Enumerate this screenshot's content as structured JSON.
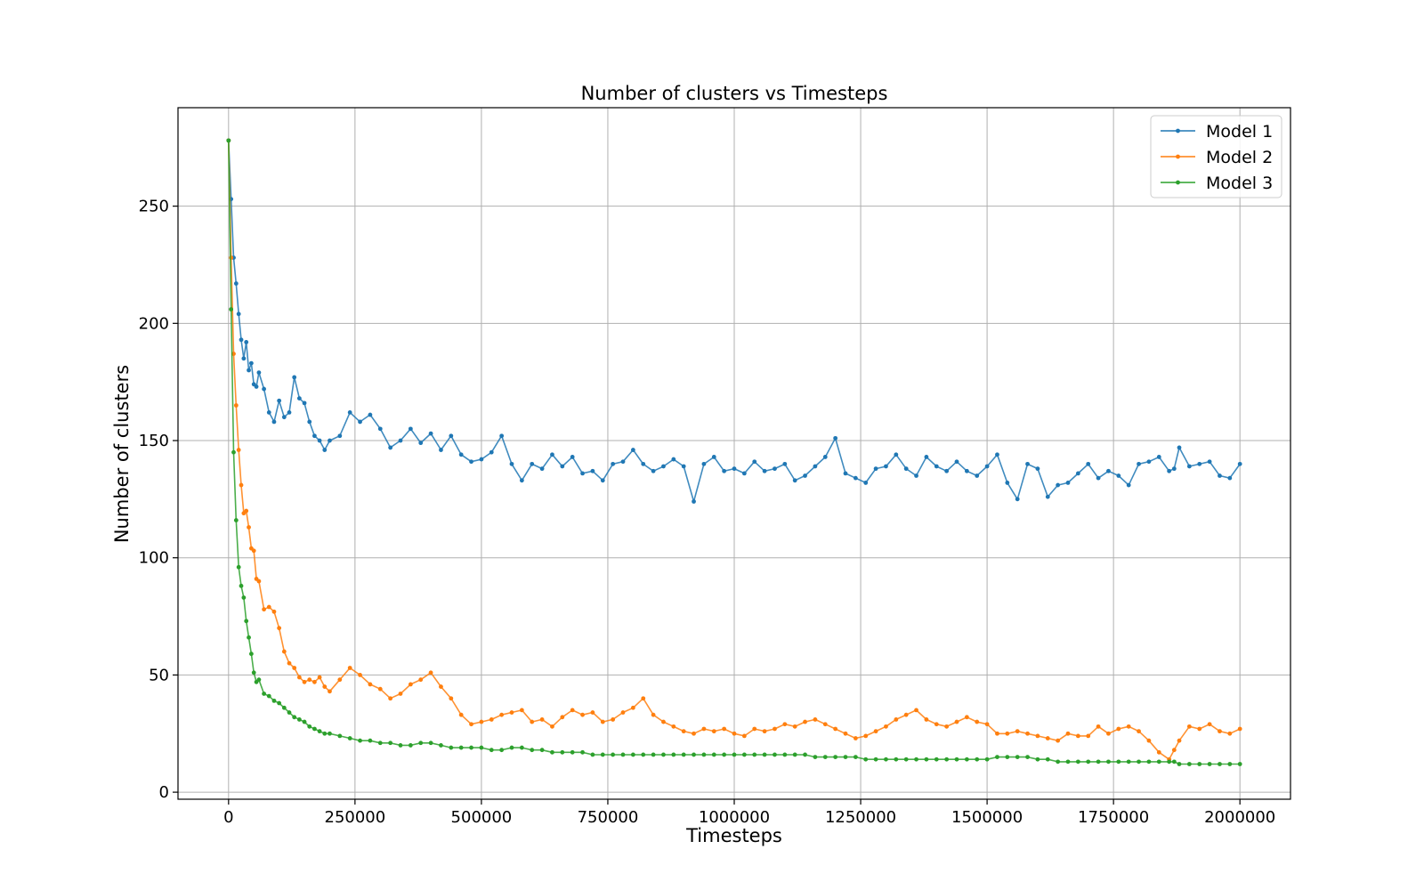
{
  "chart_data": {
    "type": "line",
    "title": "Number of clusters vs Timesteps",
    "xlabel": "Timesteps",
    "ylabel": "Number of clusters",
    "xlim": [
      -100000,
      2100000
    ],
    "ylim": [
      -3,
      292
    ],
    "x_ticks": [
      0,
      250000,
      500000,
      750000,
      1000000,
      1250000,
      1500000,
      1750000,
      2000000
    ],
    "y_ticks": [
      0,
      50,
      100,
      150,
      200,
      250
    ],
    "grid": true,
    "legend_position": "top-right",
    "x": [
      0,
      5000,
      10000,
      15000,
      20000,
      25000,
      30000,
      35000,
      40000,
      45000,
      50000,
      55000,
      60000,
      70000,
      80000,
      90000,
      100000,
      110000,
      120000,
      130000,
      140000,
      150000,
      160000,
      170000,
      180000,
      190000,
      200000,
      220000,
      240000,
      260000,
      280000,
      300000,
      320000,
      340000,
      360000,
      380000,
      400000,
      420000,
      440000,
      460000,
      480000,
      500000,
      520000,
      540000,
      560000,
      580000,
      600000,
      620000,
      640000,
      660000,
      680000,
      700000,
      720000,
      740000,
      760000,
      780000,
      800000,
      820000,
      840000,
      860000,
      880000,
      900000,
      920000,
      940000,
      960000,
      980000,
      1000000,
      1020000,
      1040000,
      1060000,
      1080000,
      1100000,
      1120000,
      1140000,
      1160000,
      1180000,
      1200000,
      1220000,
      1240000,
      1260000,
      1280000,
      1300000,
      1320000,
      1340000,
      1360000,
      1380000,
      1400000,
      1420000,
      1440000,
      1460000,
      1480000,
      1500000,
      1520000,
      1540000,
      1560000,
      1580000,
      1600000,
      1620000,
      1640000,
      1660000,
      1680000,
      1700000,
      1720000,
      1740000,
      1760000,
      1780000,
      1800000,
      1820000,
      1840000,
      1860000,
      1870000,
      1880000,
      1900000,
      1920000,
      1940000,
      1960000,
      1980000,
      2000000
    ],
    "series": [
      {
        "name": "Model 1",
        "color": "#1f77b4",
        "values": [
          278,
          253,
          228,
          217,
          204,
          193,
          185,
          192,
          180,
          183,
          174,
          173,
          179,
          172,
          162,
          158,
          167,
          160,
          162,
          177,
          168,
          166,
          158,
          152,
          150,
          146,
          150,
          152,
          162,
          158,
          161,
          155,
          147,
          150,
          155,
          149,
          153,
          146,
          152,
          144,
          141,
          142,
          145,
          152,
          140,
          133,
          140,
          138,
          144,
          139,
          143,
          136,
          137,
          133,
          140,
          141,
          146,
          140,
          137,
          139,
          142,
          139,
          124,
          140,
          143,
          137,
          138,
          136,
          141,
          137,
          138,
          140,
          133,
          135,
          139,
          143,
          151,
          136,
          134,
          132,
          138,
          139,
          144,
          138,
          135,
          143,
          139,
          137,
          141,
          137,
          135,
          139,
          144,
          132,
          125,
          140,
          138,
          126,
          131,
          132,
          136,
          140,
          134,
          137,
          135,
          131,
          140,
          141,
          143,
          137,
          138,
          147,
          139,
          140,
          141,
          135,
          134,
          140
        ],
        "markers": true
      },
      {
        "name": "Model 2",
        "color": "#ff7f0e",
        "values": [
          278,
          228,
          187,
          165,
          146,
          131,
          119,
          120,
          113,
          104,
          103,
          91,
          90,
          78,
          79,
          77,
          70,
          60,
          55,
          53,
          49,
          47,
          48,
          47,
          49,
          45,
          43,
          48,
          53,
          50,
          46,
          44,
          40,
          42,
          46,
          48,
          51,
          45,
          40,
          33,
          29,
          30,
          31,
          33,
          34,
          35,
          30,
          31,
          28,
          32,
          35,
          33,
          34,
          30,
          31,
          34,
          36,
          40,
          33,
          30,
          28,
          26,
          25,
          27,
          26,
          27,
          25,
          24,
          27,
          26,
          27,
          29,
          28,
          30,
          31,
          29,
          27,
          25,
          23,
          24,
          26,
          28,
          31,
          33,
          35,
          31,
          29,
          28,
          30,
          32,
          30,
          29,
          25,
          25,
          26,
          25,
          24,
          23,
          22,
          25,
          24,
          24,
          28,
          25,
          27,
          28,
          26,
          22,
          17,
          14,
          18,
          22,
          28,
          27,
          29,
          26,
          25,
          27
        ],
        "markers": true
      },
      {
        "name": "Model 3",
        "color": "#2ca02c",
        "values": [
          278,
          206,
          145,
          116,
          96,
          88,
          83,
          73,
          66,
          59,
          51,
          47,
          48,
          42,
          41,
          39,
          38,
          36,
          34,
          32,
          31,
          30,
          28,
          27,
          26,
          25,
          25,
          24,
          23,
          22,
          22,
          21,
          21,
          20,
          20,
          21,
          21,
          20,
          19,
          19,
          19,
          19,
          18,
          18,
          19,
          19,
          18,
          18,
          17,
          17,
          17,
          17,
          16,
          16,
          16,
          16,
          16,
          16,
          16,
          16,
          16,
          16,
          16,
          16,
          16,
          16,
          16,
          16,
          16,
          16,
          16,
          16,
          16,
          16,
          15,
          15,
          15,
          15,
          15,
          14,
          14,
          14,
          14,
          14,
          14,
          14,
          14,
          14,
          14,
          14,
          14,
          14,
          15,
          15,
          15,
          15,
          14,
          14,
          13,
          13,
          13,
          13,
          13,
          13,
          13,
          13,
          13,
          13,
          13,
          13,
          13,
          12,
          12,
          12,
          12,
          12,
          12,
          12
        ],
        "markers": true
      }
    ]
  }
}
